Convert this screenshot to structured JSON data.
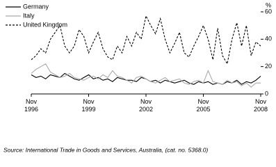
{
  "chart_data": {
    "type": "line",
    "y_label": "%",
    "source": "Source: International Trade in Goods and Services, Australia, (cat. no. 5368.0)",
    "x": [
      "1996-11",
      "1997-02",
      "1997-05",
      "1997-08",
      "1997-11",
      "1998-02",
      "1998-05",
      "1998-08",
      "1998-11",
      "1999-02",
      "1999-05",
      "1999-08",
      "1999-11",
      "2000-02",
      "2000-05",
      "2000-08",
      "2000-11",
      "2001-02",
      "2001-05",
      "2001-08",
      "2001-11",
      "2002-02",
      "2002-05",
      "2002-08",
      "2002-11",
      "2003-02",
      "2003-05",
      "2003-08",
      "2003-11",
      "2004-02",
      "2004-05",
      "2004-08",
      "2004-11",
      "2005-02",
      "2005-05",
      "2005-08",
      "2005-11",
      "2006-02",
      "2006-05",
      "2006-08",
      "2006-11",
      "2007-02",
      "2007-05",
      "2007-08",
      "2007-11",
      "2008-02",
      "2008-05",
      "2008-08",
      "2008-11"
    ],
    "xlim": [
      "1996-11",
      "2008-11"
    ],
    "xticks": [
      {
        "value": "1996-11",
        "label": "Nov 1996"
      },
      {
        "value": "1999-11",
        "label": "Nov 1999"
      },
      {
        "value": "2002-11",
        "label": "Nov 2002"
      },
      {
        "value": "2005-11",
        "label": "Nov 2005"
      },
      {
        "value": "2008-11",
        "label": "Nov 2008"
      }
    ],
    "ylim": [
      0,
      60
    ],
    "yticks": [
      0,
      20,
      40,
      60
    ],
    "y_axis_side": "right",
    "grid": false,
    "legend": "top-left",
    "series": [
      {
        "name": "Germany",
        "color": "#000000",
        "dashed": false,
        "values": [
          14,
          12,
          13,
          11,
          14,
          13,
          12,
          15,
          13,
          11,
          10,
          12,
          14,
          11,
          12,
          10,
          11,
          9,
          12,
          11,
          10,
          10,
          9,
          12,
          11,
          9,
          10,
          8,
          10,
          9,
          8,
          9,
          10,
          8,
          7,
          9,
          8,
          9,
          7,
          8,
          7,
          9,
          8,
          10,
          7,
          9,
          8,
          10,
          13
        ]
      },
      {
        "name": "Italy",
        "color": "#aaaaaa",
        "dashed": false,
        "values": [
          15,
          18,
          20,
          22,
          16,
          14,
          12,
          13,
          15,
          12,
          11,
          10,
          12,
          13,
          11,
          14,
          12,
          17,
          13,
          12,
          10,
          8,
          12,
          13,
          11,
          9,
          8,
          10,
          12,
          9,
          10,
          11,
          8,
          7,
          9,
          10,
          8,
          17,
          9,
          8,
          7,
          10,
          8,
          9,
          6,
          8,
          5,
          8,
          8
        ]
      },
      {
        "name": "United Kingdom",
        "color": "#000000",
        "dashed": true,
        "values": [
          25,
          28,
          33,
          30,
          40,
          45,
          50,
          35,
          30,
          35,
          47,
          42,
          30,
          38,
          45,
          33,
          27,
          25,
          35,
          30,
          42,
          35,
          45,
          40,
          57,
          50,
          44,
          55,
          40,
          30,
          37,
          45,
          30,
          27,
          35,
          42,
          50,
          40,
          25,
          48,
          28,
          22,
          40,
          52,
          35,
          50,
          28,
          38,
          35
        ]
      }
    ]
  }
}
